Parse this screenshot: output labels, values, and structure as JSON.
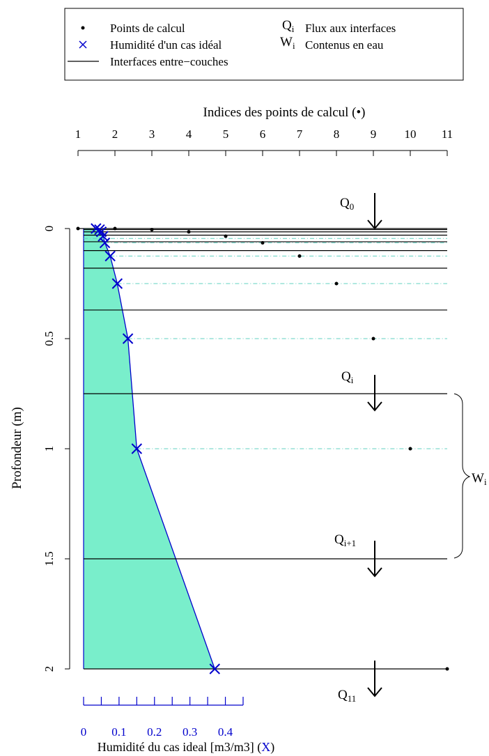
{
  "legend": {
    "points_label": "Points de calcul",
    "cross_label": "Humidité d'un cas idéal",
    "line_label": "Interfaces entre−couches",
    "q_symbol": "Q",
    "q_sub": "i",
    "q_label": "Flux aux interfaces",
    "w_symbol": "W",
    "w_sub": "i",
    "w_label": "Contenus en eau"
  },
  "top_axis": {
    "title": "Indices des points de calcul (•)",
    "ticks": [
      "1",
      "2",
      "3",
      "4",
      "5",
      "6",
      "7",
      "8",
      "9",
      "10",
      "11"
    ]
  },
  "left_axis": {
    "title": "Profondeur (m)",
    "ticks": [
      "0",
      "0.5",
      "1",
      "1.5",
      "2"
    ]
  },
  "bottom_axis": {
    "title": "Humidité du cas ideal [m3/m3] (",
    "title_symbol": "X",
    "title_end": ")",
    "ticks": [
      "0",
      "0.1",
      "0.2",
      "0.3",
      "0.4"
    ]
  },
  "flux_labels": {
    "q0": {
      "main": "Q",
      "sub": "0"
    },
    "qi": {
      "main": "Q",
      "sub": "i"
    },
    "qi1": {
      "main": "Q",
      "sub": "i+1"
    },
    "q11": {
      "main": "Q",
      "sub": "11"
    }
  },
  "brace_label": {
    "main": "W",
    "sub": "i"
  },
  "colors": {
    "fill": "#79EECB",
    "blue": "#0000CC",
    "dash": "#5FD0C0",
    "black": "#000000"
  },
  "chart_data": {
    "type": "scatter",
    "ylim": [
      0,
      2
    ],
    "humidity_xlim": [
      0,
      0.45
    ],
    "index_xlim": [
      1,
      11
    ],
    "interfaces_depth_m": [
      0,
      0.005,
      0.015,
      0.03,
      0.06,
      0.1,
      0.18,
      0.37,
      0.75,
      1.5,
      2
    ],
    "calc_points": {
      "index": [
        1,
        2,
        3,
        4,
        5,
        6,
        7,
        8,
        9,
        10,
        11
      ],
      "depth_m": [
        0,
        0,
        0.005,
        0.015,
        0.035,
        0.065,
        0.125,
        0.25,
        0.5,
        1.0,
        2.0
      ]
    },
    "humidity_profile": {
      "depth_m": [
        0,
        0.005,
        0.015,
        0.035,
        0.065,
        0.125,
        0.25,
        0.5,
        1.0,
        2.0
      ],
      "humidity": [
        0.035,
        0.045,
        0.05,
        0.055,
        0.06,
        0.075,
        0.095,
        0.125,
        0.15,
        0.37
      ]
    },
    "dashed_at_depths_m": [
      0.065,
      0.125,
      0.25,
      0.5,
      1.0
    ],
    "fill_between": {
      "humidity_left": 0,
      "humidity_right": "profile"
    }
  }
}
